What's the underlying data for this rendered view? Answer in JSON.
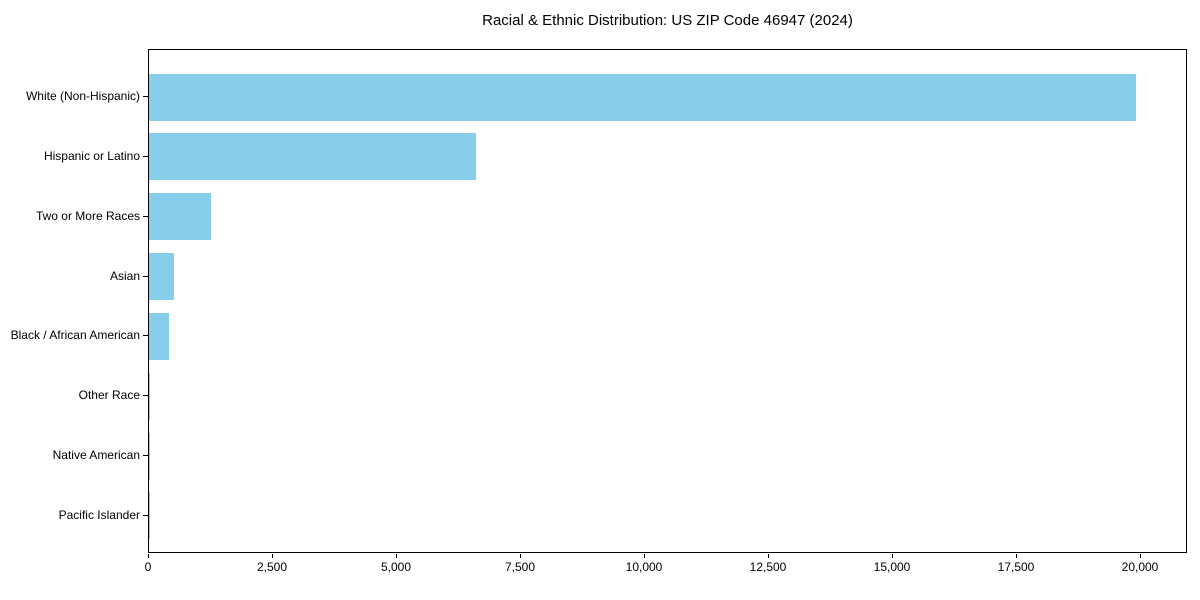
{
  "chart_data": {
    "type": "bar",
    "orientation": "horizontal",
    "title": "Racial & Ethnic Distribution: US ZIP Code 46947 (2024)",
    "categories": [
      "White (Non-Hispanic)",
      "Hispanic or Latino",
      "Two or More Races",
      "Asian",
      "Black / African American",
      "Other Race",
      "Native American",
      "Pacific Islander"
    ],
    "values": [
      19900,
      6600,
      1250,
      510,
      400,
      30,
      10,
      4
    ],
    "xlabel": "",
    "ylabel": "",
    "xlim": [
      0,
      20947
    ],
    "x_ticks": [
      0,
      2500,
      5000,
      7500,
      10000,
      12500,
      15000,
      17500,
      20000
    ],
    "x_tick_labels": [
      "0",
      "2,500",
      "5,000",
      "7,500",
      "10,000",
      "12,500",
      "15,000",
      "17,500",
      "20,000"
    ],
    "bar_color": "#87CEEB",
    "background_color": "#ffffff",
    "grid": false,
    "legend": null
  }
}
